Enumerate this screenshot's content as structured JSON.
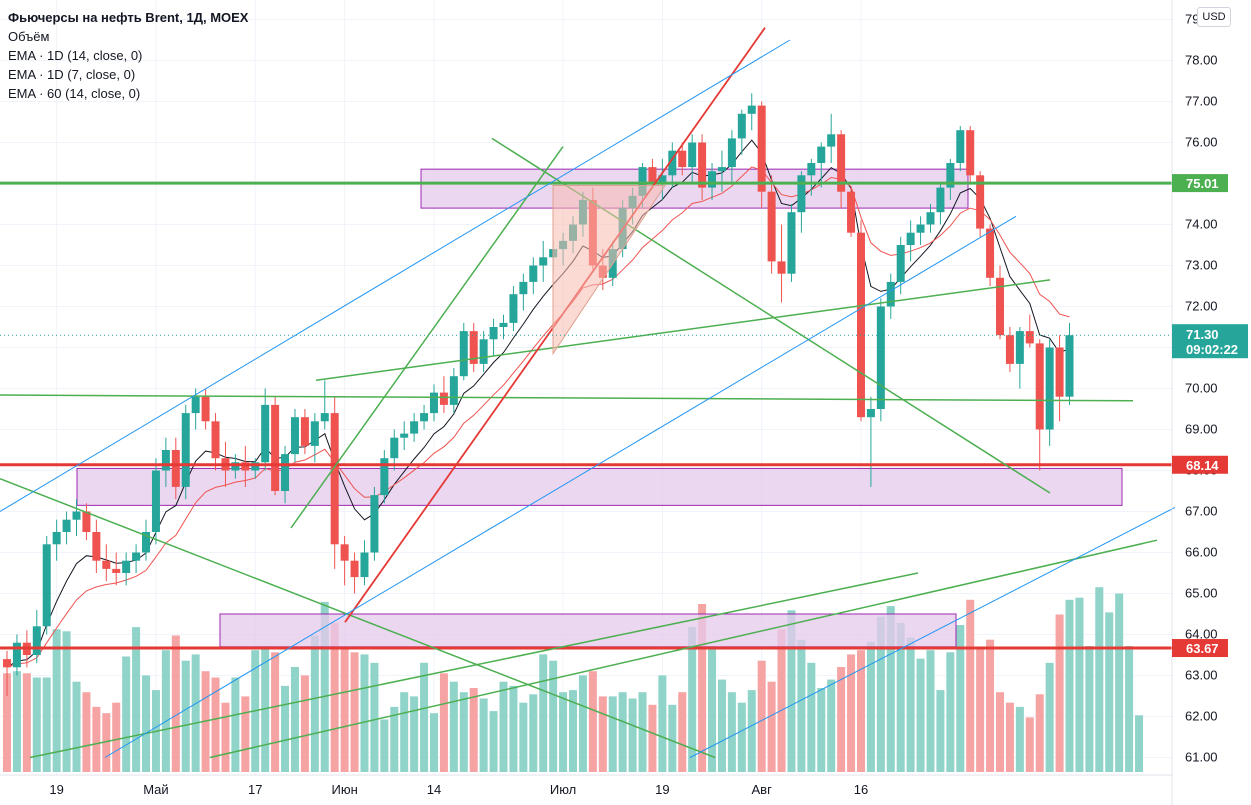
{
  "legend": {
    "title": "Фьючерсы на нефть Brent, 1Д, MOEX",
    "volume": "Объём",
    "ema1": "EMA · 1D (14, close, 0)",
    "ema2": "EMA · 1D (7, close, 0)",
    "ema3": "EMA · 60 (14, close, 0)"
  },
  "currency_label": "USD",
  "colors": {
    "up": "#26a69a",
    "down": "#ef5350",
    "volume_up": "#8fd3c9",
    "volume_down": "#f5a3a3",
    "green_line": "#4caf50",
    "red_line": "#e53935",
    "blue_line": "#2196f3",
    "zone_fill": "#e6c9ec",
    "zone_stroke": "#9c27b0",
    "ema_black": "#131722",
    "ema_red": "#ef5350"
  },
  "chart_data": {
    "type": "candlestick",
    "title": "Фьючерсы на нефть Brent, 1Д, MOEX",
    "ylim": [
      61,
      79.3
    ],
    "y_ticks": [
      "61.00",
      "62.00",
      "63.00",
      "64.00",
      "65.00",
      "66.00",
      "67.00",
      "68.00",
      "69.00",
      "70.00",
      "71.00",
      "72.00",
      "73.00",
      "74.00",
      "75.00",
      "76.00",
      "77.00",
      "78.00",
      "79.00"
    ],
    "x_ticks": [
      "19",
      "Май",
      "17",
      "Июн",
      "14",
      "Июл",
      "19",
      "Авг",
      "16"
    ],
    "x_tick_bar_index": [
      5,
      15,
      25,
      34,
      43,
      56,
      66,
      76,
      86
    ],
    "last_price": {
      "value": "71.30",
      "time": "09:02:22"
    },
    "levels": [
      {
        "value": 75.01,
        "label": "75.01",
        "color": "green"
      },
      {
        "value": 68.14,
        "label": "68.14",
        "color": "red"
      },
      {
        "value": 63.67,
        "label": "63.67",
        "color": "red"
      }
    ],
    "ohlc": [
      [
        63.4,
        63.6,
        62.5,
        63.2
      ],
      [
        63.2,
        64.0,
        63.0,
        63.8
      ],
      [
        63.8,
        64.1,
        63.2,
        63.5
      ],
      [
        63.5,
        64.6,
        63.3,
        64.2
      ],
      [
        64.2,
        66.4,
        64.0,
        66.2
      ],
      [
        66.2,
        66.8,
        65.8,
        66.5
      ],
      [
        66.5,
        67.0,
        66.2,
        66.8
      ],
      [
        66.8,
        67.3,
        66.4,
        67.0
      ],
      [
        67.0,
        67.2,
        66.3,
        66.5
      ],
      [
        66.5,
        66.8,
        65.5,
        65.8
      ],
      [
        65.8,
        66.2,
        65.3,
        65.6
      ],
      [
        65.6,
        66.0,
        65.2,
        65.5
      ],
      [
        65.5,
        66.0,
        65.2,
        65.8
      ],
      [
        65.8,
        66.2,
        65.5,
        66.0
      ],
      [
        66.0,
        66.8,
        65.8,
        66.5
      ],
      [
        66.5,
        68.3,
        66.2,
        68.0
      ],
      [
        68.0,
        68.8,
        67.6,
        68.5
      ],
      [
        68.5,
        68.8,
        67.3,
        67.6
      ],
      [
        67.6,
        69.6,
        67.3,
        69.4
      ],
      [
        69.4,
        70.0,
        69.0,
        69.8
      ],
      [
        69.8,
        70.0,
        69.0,
        69.2
      ],
      [
        69.2,
        69.4,
        68.0,
        68.3
      ],
      [
        68.3,
        68.7,
        67.6,
        68.0
      ],
      [
        68.0,
        68.4,
        67.8,
        68.2
      ],
      [
        68.2,
        68.6,
        67.6,
        68.0
      ],
      [
        68.0,
        68.3,
        67.8,
        68.2
      ],
      [
        68.2,
        70.0,
        68.0,
        69.6
      ],
      [
        69.6,
        69.8,
        67.4,
        67.5
      ],
      [
        67.5,
        68.6,
        67.2,
        68.4
      ],
      [
        68.4,
        69.5,
        68.2,
        69.3
      ],
      [
        69.3,
        69.5,
        68.4,
        68.6
      ],
      [
        68.6,
        69.4,
        68.2,
        69.2
      ],
      [
        69.2,
        70.2,
        69.0,
        69.4
      ],
      [
        69.4,
        69.8,
        65.6,
        66.2
      ],
      [
        66.2,
        66.4,
        65.2,
        65.8
      ],
      [
        65.8,
        66.0,
        65.0,
        65.4
      ],
      [
        65.4,
        66.3,
        65.2,
        66.0
      ],
      [
        66.0,
        67.6,
        65.8,
        67.4
      ],
      [
        67.4,
        68.5,
        67.2,
        68.3
      ],
      [
        68.3,
        69.0,
        68.0,
        68.8
      ],
      [
        68.8,
        69.2,
        68.5,
        68.9
      ],
      [
        68.9,
        69.4,
        68.7,
        69.2
      ],
      [
        69.2,
        69.6,
        69.0,
        69.4
      ],
      [
        69.4,
        70.1,
        69.2,
        69.9
      ],
      [
        69.9,
        70.3,
        69.4,
        69.6
      ],
      [
        69.6,
        70.5,
        69.4,
        70.3
      ],
      [
        70.3,
        71.6,
        70.2,
        71.4
      ],
      [
        71.4,
        71.6,
        70.4,
        70.6
      ],
      [
        70.6,
        71.4,
        70.4,
        71.2
      ],
      [
        71.2,
        71.7,
        70.8,
        71.5
      ],
      [
        71.5,
        71.8,
        71.2,
        71.6
      ],
      [
        71.6,
        72.5,
        71.4,
        72.3
      ],
      [
        72.3,
        72.8,
        71.9,
        72.6
      ],
      [
        72.6,
        73.2,
        72.3,
        73.0
      ],
      [
        73.0,
        73.6,
        72.6,
        73.2
      ],
      [
        73.2,
        73.6,
        72.8,
        73.4
      ],
      [
        73.4,
        73.8,
        73.0,
        73.6
      ],
      [
        73.6,
        74.2,
        73.3,
        74.0
      ],
      [
        74.0,
        74.8,
        73.7,
        74.6
      ],
      [
        74.6,
        74.9,
        72.9,
        73.0
      ]
    ],
    "ohlc_2": [
      [
        73.0,
        73.4,
        72.4,
        72.7
      ],
      [
        72.7,
        73.6,
        72.5,
        73.4
      ],
      [
        73.4,
        74.6,
        73.2,
        74.4
      ],
      [
        74.4,
        74.9,
        74.0,
        74.7
      ],
      [
        74.7,
        75.5,
        74.4,
        75.4
      ],
      [
        75.4,
        75.6,
        74.9,
        75.0
      ],
      [
        75.0,
        75.6,
        74.6,
        75.2
      ],
      [
        75.2,
        76.0,
        74.9,
        75.8
      ],
      [
        75.8,
        76.0,
        75.2,
        75.4
      ],
      [
        75.4,
        76.2,
        75.0,
        76.0
      ],
      [
        76.0,
        76.2,
        74.6,
        74.9
      ],
      [
        74.9,
        75.5,
        74.6,
        75.3
      ],
      [
        75.3,
        75.8,
        74.8,
        75.4
      ],
      [
        75.4,
        76.3,
        75.0,
        76.1
      ],
      [
        76.1,
        76.8,
        75.7,
        76.7
      ],
      [
        76.7,
        77.2,
        76.3,
        76.9
      ],
      [
        76.9,
        77.0,
        74.4,
        74.8
      ],
      [
        74.8,
        75.2,
        72.8,
        73.1
      ],
      [
        73.1,
        74.0,
        72.1,
        72.8
      ],
      [
        72.8,
        74.5,
        72.6,
        74.3
      ],
      [
        74.3,
        75.3,
        73.8,
        75.2
      ],
      [
        75.2,
        75.6,
        74.7,
        75.5
      ],
      [
        75.5,
        76.0,
        74.9,
        75.9
      ],
      [
        75.9,
        76.7,
        75.5,
        76.2
      ],
      [
        76.2,
        76.3,
        74.4,
        74.8
      ],
      [
        74.8,
        74.9,
        73.7,
        73.8
      ],
      [
        73.8,
        74.1,
        69.2,
        69.3
      ],
      [
        69.3,
        69.8,
        67.6,
        69.5
      ],
      [
        69.5,
        72.2,
        69.2,
        72.0
      ],
      [
        72.0,
        72.8,
        71.7,
        72.6
      ],
      [
        72.6,
        73.7,
        72.3,
        73.5
      ],
      [
        73.5,
        74.1,
        73.1,
        73.8
      ],
      [
        73.8,
        74.2,
        73.5,
        74.0
      ],
      [
        74.0,
        74.5,
        73.8,
        74.3
      ],
      [
        74.3,
        75.0,
        74.0,
        74.9
      ],
      [
        74.9,
        75.6,
        74.6,
        75.5
      ],
      [
        75.5,
        76.4,
        75.3,
        76.3
      ],
      [
        76.3,
        76.4,
        75.0,
        75.2
      ],
      [
        75.2,
        75.3,
        73.7,
        73.9
      ],
      [
        73.9,
        74.0,
        72.5,
        72.7
      ],
      [
        72.7,
        73.0,
        71.2,
        71.3
      ],
      [
        71.3,
        71.5,
        70.4,
        70.6
      ],
      [
        70.6,
        71.5,
        70.0,
        71.4
      ],
      [
        71.4,
        71.8,
        71.0,
        71.1
      ],
      [
        71.1,
        71.2,
        68.0,
        69.0
      ],
      [
        69.0,
        71.2,
        68.6,
        71.0
      ],
      [
        71.0,
        71.3,
        69.2,
        69.8
      ],
      [
        69.8,
        71.6,
        69.6,
        71.3
      ]
    ],
    "volume_ratio": [
      0.47,
      0.48,
      0.47,
      0.45,
      0.45,
      0.68,
      0.67,
      0.43,
      0.38,
      0.31,
      0.28,
      0.33,
      0.55,
      0.69,
      0.46,
      0.39,
      0.58,
      0.65,
      0.53,
      0.56,
      0.48,
      0.45,
      0.33,
      0.45,
      0.36,
      0.58,
      0.6,
      0.57,
      0.41,
      0.5,
      0.46,
      0.65,
      0.81,
      0.71,
      0.59,
      0.57,
      0.56,
      0.52,
      0.25,
      0.31,
      0.38,
      0.36,
      0.52,
      0.28,
      0.47,
      0.43,
      0.38,
      0.4,
      0.35,
      0.29,
      0.43,
      0.41,
      0.33,
      0.37,
      0.56,
      0.53,
      0.38,
      0.39,
      0.46,
      0.48,
      0.36,
      0.36,
      0.38,
      0.35,
      0.38,
      0.32,
      0.46,
      0.32,
      0.38,
      0.69,
      0.8,
      0.6,
      0.44,
      0.38,
      0.33,
      0.39,
      0.53,
      0.43,
      0.68,
      0.77,
      0.63,
      0.52,
      0.4,
      0.44,
      0.5,
      0.56,
      0.58,
      0.62,
      0.74,
      0.79,
      0.71,
      0.64,
      0.54,
      0.58,
      0.39,
      0.57,
      0.7,
      0.82,
      0.59,
      0.63,
      0.38,
      0.33,
      0.31,
      0.26,
      0.37,
      0.52,
      0.75,
      0.82,
      0.83,
      0.6,
      0.88,
      0.76,
      0.85,
      0.6,
      0.27
    ]
  }
}
